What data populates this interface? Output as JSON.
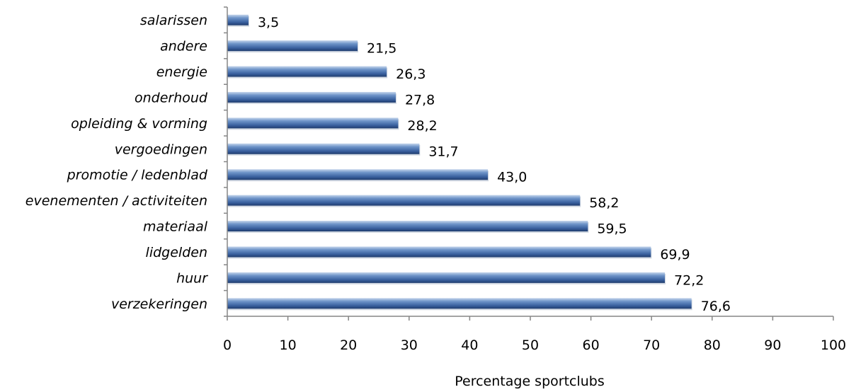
{
  "chart_data": {
    "type": "bar",
    "orientation": "horizontal",
    "categories": [
      "salarissen",
      "andere",
      "energie",
      "onderhoud",
      "opleiding & vorming",
      "vergoedingen",
      "promotie / ledenblad",
      "evenementen / activiteiten",
      "materiaal",
      "lidgelden",
      "huur",
      "verzekeringen"
    ],
    "values": [
      3.5,
      21.5,
      26.3,
      27.8,
      28.2,
      31.7,
      43.0,
      58.2,
      59.5,
      69.9,
      72.2,
      76.6
    ],
    "value_labels": [
      "3,5",
      "21,5",
      "26,3",
      "27,8",
      "28,2",
      "31,7",
      "43,0",
      "58,2",
      "59,5",
      "69,9",
      "72,2",
      "76,6"
    ],
    "xlabel": "Percentage sportclubs",
    "ylabel": "",
    "xlim": [
      0,
      100
    ],
    "xticks": [
      "0",
      "10",
      "20",
      "30",
      "40",
      "50",
      "60",
      "70",
      "80",
      "90",
      "100"
    ],
    "grid": false,
    "legend": "none",
    "bar_color": "#4f81bd"
  }
}
